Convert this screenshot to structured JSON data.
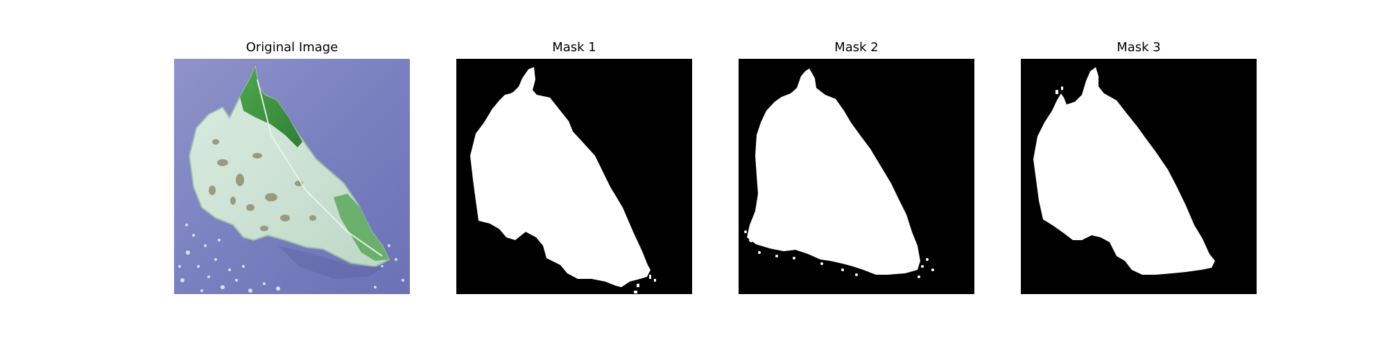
{
  "figure": {
    "panels": [
      {
        "title": "Original Image",
        "content": "tomato leaf photograph"
      },
      {
        "title": "Mask 1",
        "content": "binary segmentation mask"
      },
      {
        "title": "Mask 2",
        "content": "binary segmentation mask"
      },
      {
        "title": "Mask 3",
        "content": "binary segmentation mask"
      }
    ]
  },
  "colors": {
    "background": "#ffffff",
    "mask_foreground": "#ffffff",
    "mask_background": "#000000",
    "photo_backdrop": "#7f86bf",
    "leaf_pale": "#d7e7dd",
    "leaf_green": "#3f9a3f"
  }
}
